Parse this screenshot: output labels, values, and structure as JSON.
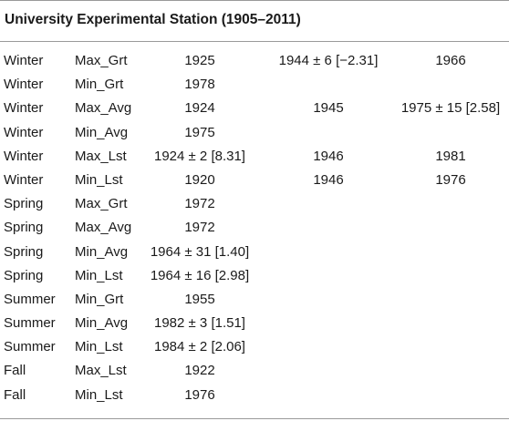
{
  "table": {
    "title": "University Experimental Station (1905–2011)",
    "rows": [
      {
        "season": "Winter",
        "variable": "Max_Grt",
        "col1": "1925",
        "col2": "1944 ± 6 [−2.31]",
        "col3": "1966"
      },
      {
        "season": "Winter",
        "variable": "Min_Grt",
        "col1": "1978",
        "col2": "",
        "col3": ""
      },
      {
        "season": "Winter",
        "variable": "Max_Avg",
        "col1": "1924",
        "col2": "1945",
        "col3": "1975 ± 15 [2.58]"
      },
      {
        "season": "Winter",
        "variable": "Min_Avg",
        "col1": "1975",
        "col2": "",
        "col3": ""
      },
      {
        "season": "Winter",
        "variable": "Max_Lst",
        "col1": "1924 ± 2 [8.31]",
        "col2": "1946",
        "col3": "1981"
      },
      {
        "season": "Winter",
        "variable": "Min_Lst",
        "col1": "1920",
        "col2": "1946",
        "col3": "1976"
      },
      {
        "season": "Spring",
        "variable": "Max_Grt",
        "col1": "1972",
        "col2": "",
        "col3": ""
      },
      {
        "season": "Spring",
        "variable": "Max_Avg",
        "col1": "1972",
        "col2": "",
        "col3": ""
      },
      {
        "season": "Spring",
        "variable": "Min_Avg",
        "col1": "1964 ± 31 [1.40]",
        "col2": "",
        "col3": ""
      },
      {
        "season": "Spring",
        "variable": "Min_Lst",
        "col1": "1964 ± 16 [2.98]",
        "col2": "",
        "col3": ""
      },
      {
        "season": "Summer",
        "variable": "Min_Grt",
        "col1": "1955",
        "col2": "",
        "col3": ""
      },
      {
        "season": "Summer",
        "variable": "Min_Avg",
        "col1": "1982 ± 3 [1.51]",
        "col2": "",
        "col3": ""
      },
      {
        "season": "Summer",
        "variable": "Min_Lst",
        "col1": "1984 ± 2 [2.06]",
        "col2": "",
        "col3": ""
      },
      {
        "season": "Fall",
        "variable": "Max_Lst",
        "col1": "1922",
        "col2": "",
        "col3": ""
      },
      {
        "season": "Fall",
        "variable": "Min_Lst",
        "col1": "1976",
        "col2": "",
        "col3": ""
      }
    ]
  }
}
